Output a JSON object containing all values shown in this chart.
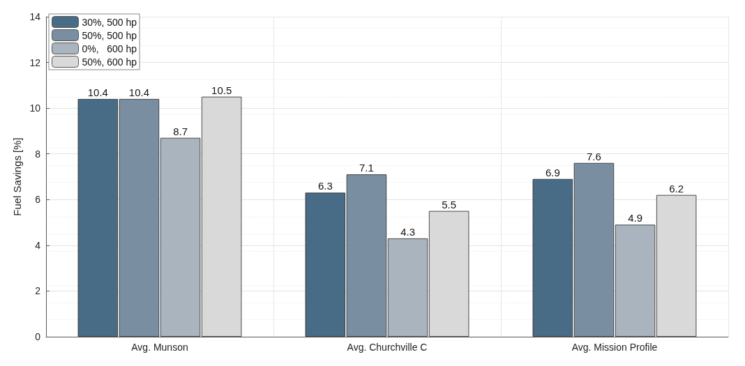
{
  "chart_data": {
    "type": "bar",
    "ylabel": "Fuel Savings [%]",
    "categories": [
      "Avg. Munson",
      "Avg. Churchville C",
      "Avg. Mission Profile"
    ],
    "series": [
      {
        "name": "30%, 500 hp",
        "color": "#486b86",
        "values": [
          10.4,
          6.3,
          6.9
        ]
      },
      {
        "name": "50%, 500 hp",
        "color": "#7a8ea2",
        "values": [
          10.4,
          7.1,
          7.6
        ]
      },
      {
        "name": "0%,   600 hp",
        "color": "#a9b4bf",
        "values": [
          8.7,
          4.3,
          4.9
        ]
      },
      {
        "name": "50%, 600 hp",
        "color": "#d9d9d9",
        "values": [
          10.5,
          5.5,
          6.2
        ]
      }
    ],
    "ylim": [
      0,
      14
    ],
    "yticks": [
      0,
      2,
      4,
      6,
      8,
      10,
      12,
      14
    ],
    "grid": true,
    "legend": "top left",
    "data_labels": true
  }
}
